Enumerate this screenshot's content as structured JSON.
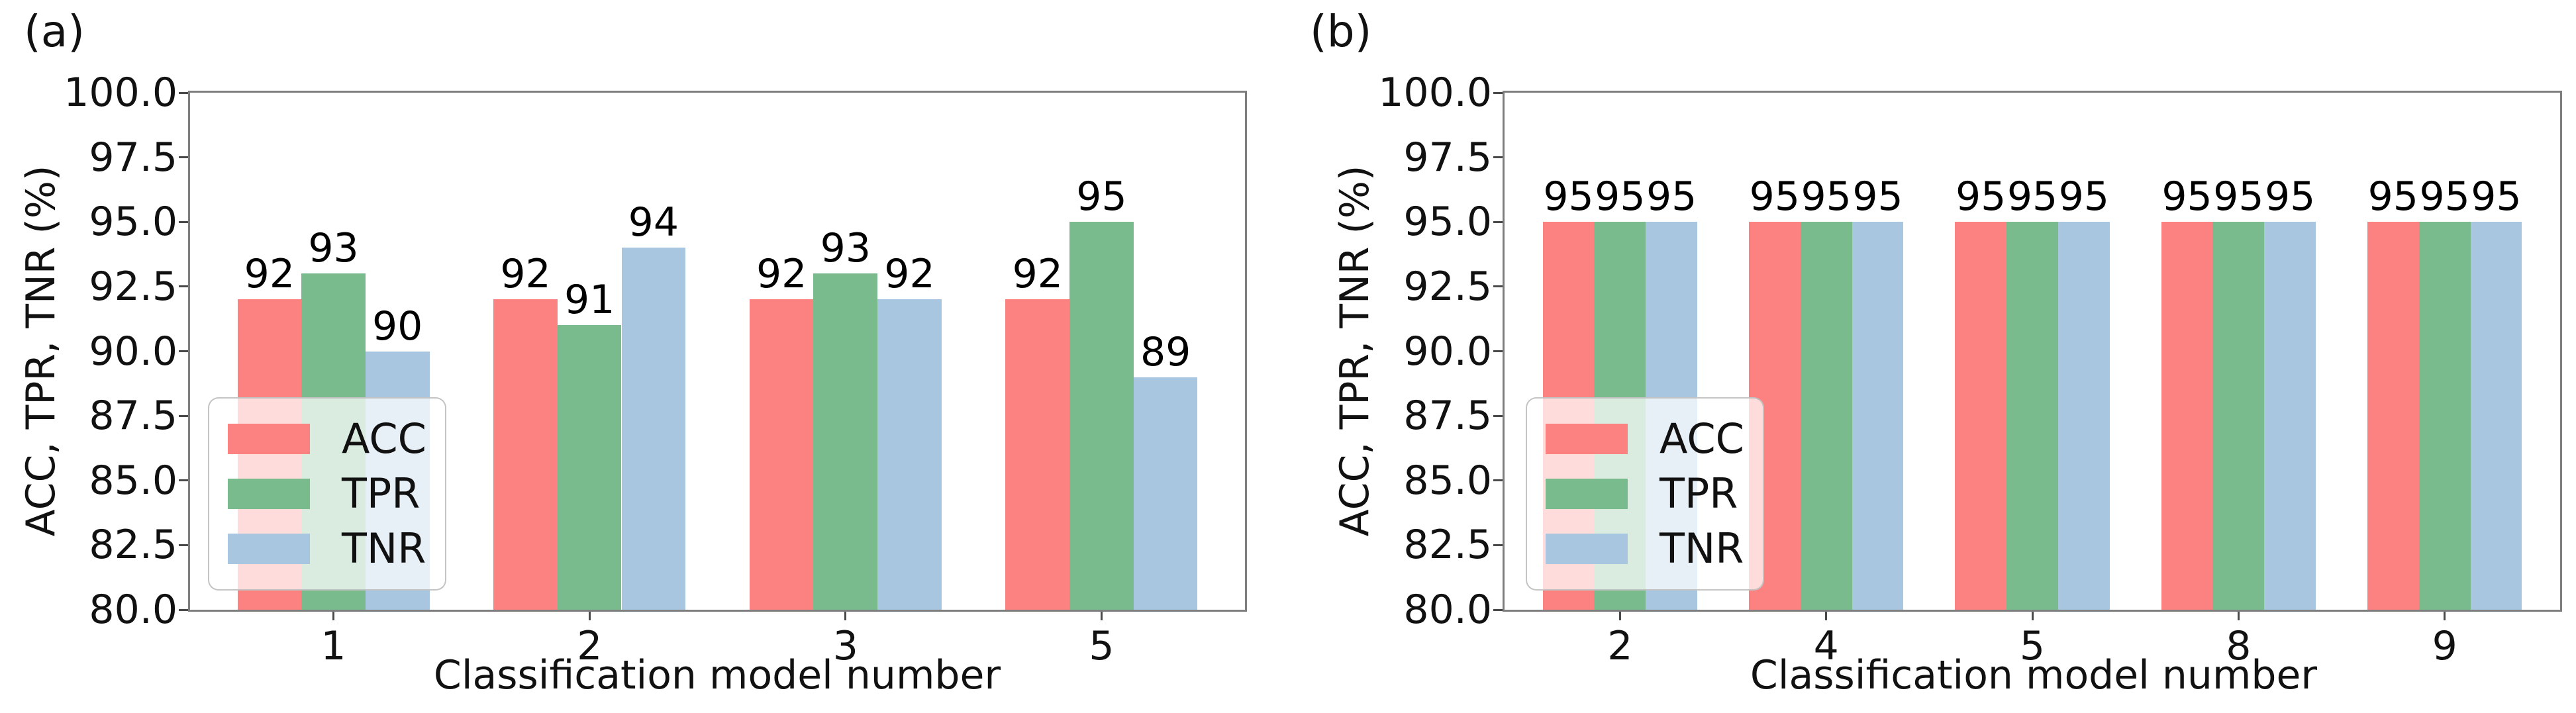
{
  "figure": {
    "background": "#ffffff",
    "spine_color": "#7e7e7e",
    "text_color": "#111111"
  },
  "chart_data": [
    {
      "type": "bar",
      "panel_label": "(a)",
      "xlabel": "Classification model number",
      "ylabel": "ACC, TPR, TNR (%)",
      "categories": [
        "1",
        "2",
        "3",
        "5"
      ],
      "series": [
        {
          "name": "ACC",
          "color": "#fc8181",
          "values": [
            92,
            92,
            92,
            92
          ]
        },
        {
          "name": "TPR",
          "color": "#79bb8c",
          "values": [
            93,
            91,
            93,
            95
          ]
        },
        {
          "name": "TNR",
          "color": "#a9c6e1",
          "values": [
            90,
            94,
            92,
            89
          ]
        }
      ],
      "bar_value_labels": true,
      "ylim": [
        80,
        100
      ],
      "yticks": [
        "80.0",
        "82.5",
        "85.0",
        "87.5",
        "90.0",
        "92.5",
        "95.0",
        "97.5",
        "100.0"
      ],
      "grid": false,
      "legend_position": "lower left"
    },
    {
      "type": "bar",
      "panel_label": "(b)",
      "xlabel": "Classification model number",
      "ylabel": "ACC, TPR, TNR (%)",
      "categories": [
        "2",
        "4",
        "5",
        "8",
        "9"
      ],
      "series": [
        {
          "name": "ACC",
          "color": "#fc8181",
          "values": [
            95,
            95,
            95,
            95,
            95
          ]
        },
        {
          "name": "TPR",
          "color": "#79bb8c",
          "values": [
            95,
            95,
            95,
            95,
            95
          ]
        },
        {
          "name": "TNR",
          "color": "#a9c6e1",
          "values": [
            95,
            95,
            95,
            95,
            95
          ]
        }
      ],
      "bar_value_labels": true,
      "ylim": [
        80,
        100
      ],
      "yticks": [
        "80.0",
        "82.5",
        "85.0",
        "87.5",
        "90.0",
        "92.5",
        "95.0",
        "97.5",
        "100.0"
      ],
      "grid": false,
      "legend_position": "lower left"
    }
  ]
}
